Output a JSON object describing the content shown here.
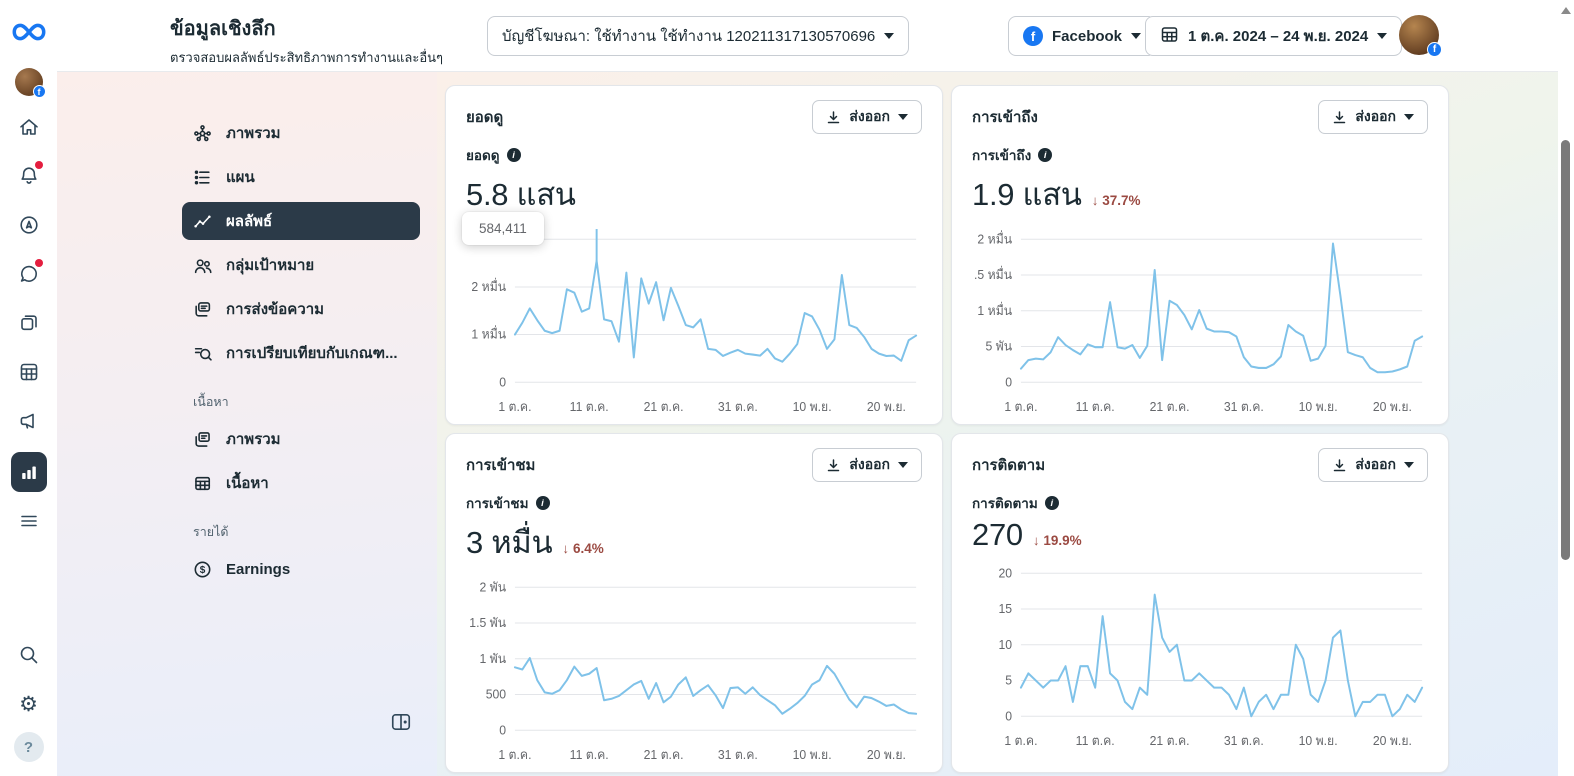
{
  "header": {
    "title": "ข้อมูลเชิงลึก",
    "subtitle": "ตรวจสอบผลลัพธ์ประสิทธิภาพการทำงานและอื่นๆ",
    "account_dropdown": "บัญชีโฆษณา: ใช้ทำงาน ใช้ทำงาน 120211317130570696",
    "platform_dropdown": "Facebook",
    "date_range": "1 ต.ค. 2024 – 24 พ.ย. 2024"
  },
  "rail": {
    "icons": [
      "meta-logo",
      "profile-avatar",
      "home",
      "notifications",
      "ads-boost",
      "messages",
      "pages",
      "planner",
      "ads",
      "insights-active",
      "more-menu",
      "search",
      "settings",
      "help"
    ]
  },
  "sidebar": {
    "items": [
      {
        "label": "ภาพรวม",
        "icon": "overview"
      },
      {
        "label": "แผน",
        "icon": "plan"
      },
      {
        "label": "ผลลัพธ์",
        "icon": "results",
        "active": true
      },
      {
        "label": "กลุ่มเป้าหมาย",
        "icon": "audience"
      },
      {
        "label": "การส่งข้อความ",
        "icon": "messaging"
      },
      {
        "label": "การเปรียบเทียบกับเกณฑ...",
        "icon": "benchmark"
      }
    ],
    "section_content_label": "เนื้อหา",
    "content_items": [
      {
        "label": "ภาพรวม",
        "icon": "content-overview"
      },
      {
        "label": "เนื้อหา",
        "icon": "content-table"
      }
    ],
    "section_income_label": "รายได้",
    "income_items": [
      {
        "label": "Earnings",
        "icon": "earnings"
      }
    ]
  },
  "cards": [
    {
      "title": "ยอดดู",
      "metric_label": "ยอดดู",
      "value": "5.8 แสน",
      "export_label": "ส่งออก",
      "tooltip": "584,411"
    },
    {
      "title": "การเข้าถึง",
      "metric_label": "การเข้าถึง",
      "value": "1.9 แสน",
      "delta_arrow": "↓",
      "delta": "37.7%",
      "export_label": "ส่งออก"
    },
    {
      "title": "การเข้าชม",
      "metric_label": "การเข้าชม",
      "value": "3 หมื่น",
      "delta_arrow": "↓",
      "delta": "6.4%",
      "export_label": "ส่งออก"
    },
    {
      "title": "การติดตาม",
      "metric_label": "การติดตาม",
      "value": "270",
      "delta_arrow": "↓",
      "delta": "19.9%",
      "export_label": "ส่งออก"
    }
  ],
  "chart_data": [
    {
      "type": "line",
      "title": "ยอดดู",
      "x_labels": [
        "1 ต.ค.",
        "11 ต.ค.",
        "21 ต.ค.",
        "31 ต.ค.",
        "10 พ.ย.",
        "20 พ.ย."
      ],
      "x_positions": [
        0,
        10,
        20,
        30,
        40,
        50
      ],
      "y_ticks": [
        {
          "value": 0,
          "label": "0"
        },
        {
          "value": 10000,
          "label": "1 หมื่น"
        },
        {
          "value": 20000,
          "label": "2 หมื่น"
        },
        {
          "value": 30000,
          "label": "3 หมื่น"
        }
      ],
      "ylim": [
        0,
        30000
      ],
      "grid": true,
      "legend": "none",
      "line_color": "#7fc2e9",
      "highlight": {
        "index": 11,
        "tooltip": "584,411"
      },
      "values": [
        10000,
        12500,
        15500,
        13000,
        10800,
        10300,
        10800,
        19500,
        18800,
        14800,
        15500,
        25500,
        13200,
        12800,
        8500,
        23000,
        5200,
        21800,
        16500,
        21000,
        13000,
        19800,
        16000,
        12000,
        11500,
        13200,
        7000,
        6800,
        5500,
        6200,
        6800,
        6000,
        5800,
        5600,
        7000,
        5000,
        4300,
        6000,
        8000,
        14500,
        13800,
        11000,
        7000,
        9000,
        22500,
        12000,
        11400,
        9500,
        7000,
        6000,
        5500,
        5600,
        4500,
        8800,
        9800
      ]
    },
    {
      "type": "line",
      "title": "การเข้าถึง",
      "x_labels": [
        "1 ต.ค.",
        "11 ต.ค.",
        "21 ต.ค.",
        "31 ต.ค.",
        "10 พ.ย.",
        "20 พ.ย."
      ],
      "x_positions": [
        0,
        10,
        20,
        30,
        40,
        50
      ],
      "y_ticks": [
        {
          "value": 0,
          "label": "0"
        },
        {
          "value": 5000,
          "label": "5 พัน"
        },
        {
          "value": 10000,
          "label": "1 หมื่น"
        },
        {
          "value": 15000,
          "label": ".5 หมื่น"
        },
        {
          "value": 20000,
          "label": "2 หมื่น"
        }
      ],
      "ylim": [
        0,
        20000
      ],
      "grid": true,
      "legend": "none",
      "line_color": "#7fc2e9",
      "values": [
        1900,
        3100,
        3300,
        3200,
        4200,
        6300,
        5200,
        4500,
        3900,
        5300,
        4900,
        4900,
        11200,
        4900,
        4700,
        5200,
        3400,
        5100,
        15700,
        3100,
        11400,
        10800,
        9400,
        7400,
        10100,
        7500,
        7100,
        7100,
        7000,
        6400,
        3500,
        2200,
        2000,
        2000,
        2500,
        3600,
        8000,
        7100,
        6500,
        3000,
        3300,
        5100,
        19400,
        12100,
        4200,
        3800,
        3500,
        2000,
        1400,
        1400,
        1500,
        1800,
        2200,
        5800,
        6400
      ]
    },
    {
      "type": "line",
      "title": "การเข้าชม",
      "x_labels": [
        "1 ต.ค.",
        "11 ต.ค.",
        "21 ต.ค.",
        "31 ต.ค.",
        "10 พ.ย.",
        "20 พ.ย."
      ],
      "x_positions": [
        0,
        10,
        20,
        30,
        40,
        50
      ],
      "y_ticks": [
        {
          "value": 0,
          "label": "0"
        },
        {
          "value": 500,
          "label": "500"
        },
        {
          "value": 1000,
          "label": "1 พัน"
        },
        {
          "value": 1500,
          "label": "1.5 พัน"
        },
        {
          "value": 2000,
          "label": "2 พัน"
        }
      ],
      "ylim": [
        0,
        2000
      ],
      "grid": true,
      "legend": "none",
      "line_color": "#7fc2e9",
      "values": [
        880,
        850,
        1010,
        700,
        530,
        510,
        560,
        700,
        890,
        760,
        790,
        870,
        420,
        440,
        480,
        560,
        640,
        690,
        440,
        660,
        390,
        470,
        640,
        740,
        480,
        560,
        630,
        490,
        310,
        590,
        600,
        510,
        600,
        490,
        420,
        350,
        230,
        300,
        380,
        480,
        640,
        700,
        900,
        790,
        610,
        430,
        320,
        470,
        450,
        400,
        340,
        360,
        290,
        240,
        230
      ]
    },
    {
      "type": "line",
      "title": "การติดตาม",
      "x_labels": [
        "1 ต.ค.",
        "11 ต.ค.",
        "21 ต.ค.",
        "31 ต.ค.",
        "10 พ.ย.",
        "20 พ.ย."
      ],
      "x_positions": [
        0,
        10,
        20,
        30,
        40,
        50
      ],
      "y_ticks": [
        {
          "value": 0,
          "label": "0"
        },
        {
          "value": 5,
          "label": "5"
        },
        {
          "value": 10,
          "label": "10"
        },
        {
          "value": 15,
          "label": "15"
        },
        {
          "value": 20,
          "label": "20"
        }
      ],
      "ylim": [
        0,
        20
      ],
      "grid": true,
      "legend": "none",
      "line_color": "#7fc2e9",
      "values": [
        4,
        6,
        5,
        4,
        5,
        5,
        7,
        2,
        7,
        7,
        4,
        14,
        6,
        5,
        2,
        1,
        4,
        3,
        17,
        11,
        9,
        10,
        5,
        5,
        6,
        5,
        4,
        4,
        3,
        1,
        4,
        0,
        2,
        3,
        1,
        3,
        3,
        10,
        8,
        3,
        2,
        5,
        11,
        12,
        5,
        0,
        2,
        2,
        3,
        3,
        0,
        1,
        3,
        2,
        4
      ]
    }
  ],
  "colors": {
    "accent": "#1877f2",
    "line": "#7fc2e9",
    "negative": "#9b4a42",
    "active_item_bg": "#2b3a48",
    "text": "#1c2b33",
    "secondary_text": "#65676b"
  }
}
